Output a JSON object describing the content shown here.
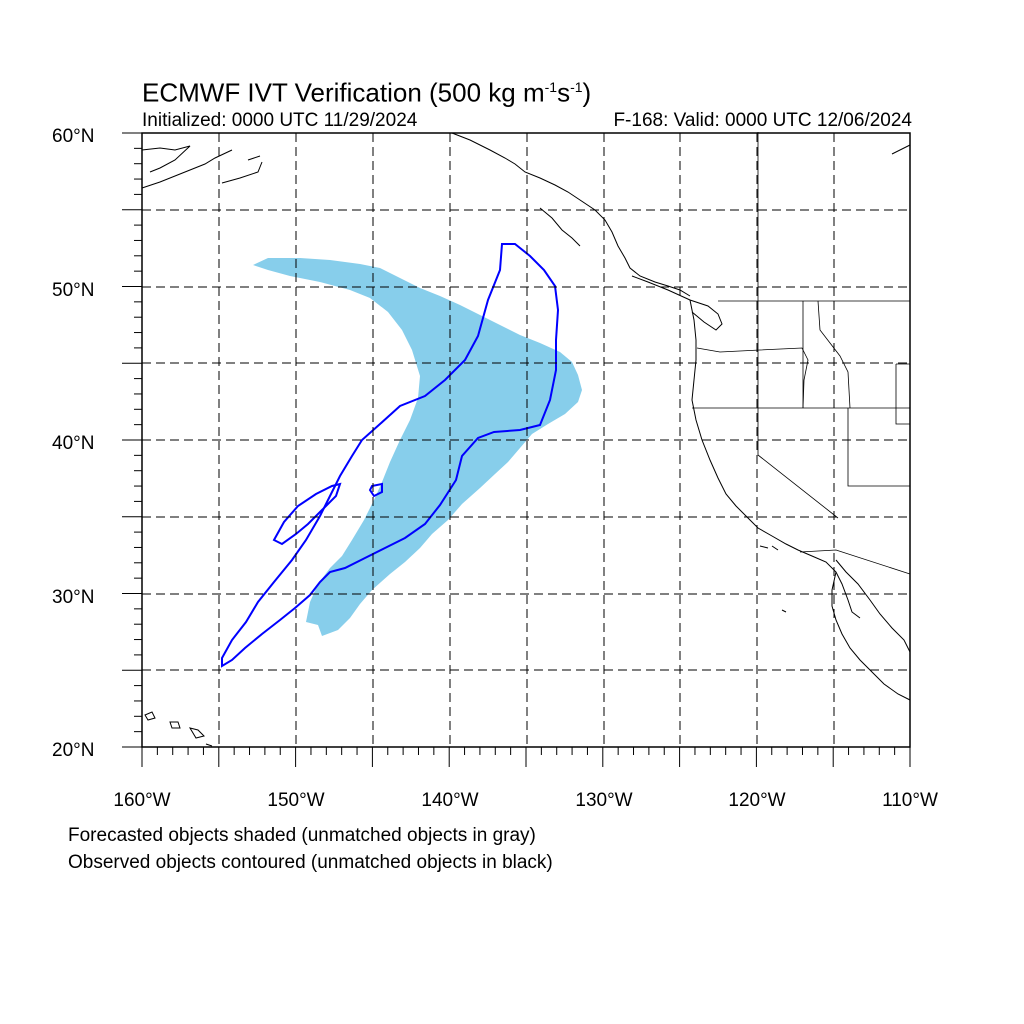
{
  "title": {
    "main": "ECMWF IVT Verification (500 kg m",
    "sup1": "-1",
    "mid": "s",
    "sup2": "-1",
    "end": ")"
  },
  "subtitle_left": "Initialized: 0000 UTC 11/29/2024",
  "subtitle_right": "F-168: Valid: 0000 UTC 12/06/2024",
  "map": {
    "lon_range": [
      -160,
      -110
    ],
    "lat_range": [
      20,
      60
    ],
    "lon_labels": [
      "160°W",
      "150°W",
      "140°W",
      "130°W",
      "120°W",
      "110°W"
    ],
    "lat_labels": [
      "20°N",
      "30°N",
      "40°N",
      "50°N",
      "60°N"
    ],
    "forecast_color": "#87ceeb",
    "observed_color": "#0000ff",
    "coast_color": "#000000",
    "grid": "dashed"
  },
  "legend": {
    "line1": "Forecasted objects shaded (unmatched objects in gray)",
    "line2": "Observed objects contoured (unmatched objects in black)"
  }
}
